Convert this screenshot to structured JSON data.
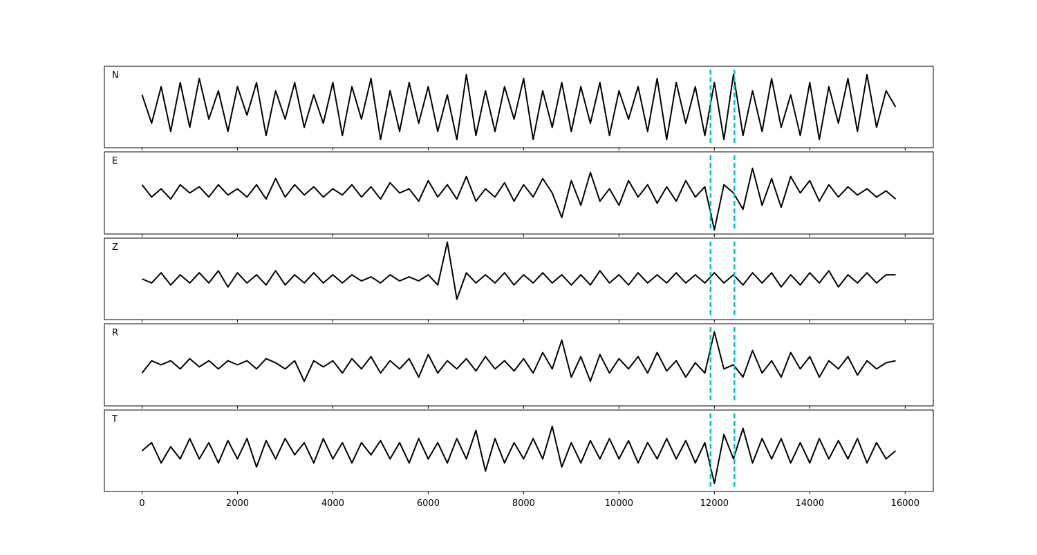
{
  "chart_data": {
    "type": "line",
    "x": [
      0,
      200,
      400,
      600,
      800,
      1000,
      1200,
      1400,
      1600,
      1800,
      2000,
      2200,
      2400,
      2600,
      2800,
      3000,
      3200,
      3400,
      3600,
      3800,
      4000,
      4200,
      4400,
      4600,
      4800,
      5000,
      5200,
      5400,
      5600,
      5800,
      6000,
      6200,
      6400,
      6600,
      6800,
      7000,
      7200,
      7400,
      7600,
      7800,
      8000,
      8200,
      8400,
      8600,
      8800,
      9000,
      9200,
      9400,
      9600,
      9800,
      10000,
      10200,
      10400,
      10600,
      10800,
      11000,
      11200,
      11400,
      11600,
      11800,
      12000,
      12200,
      12400,
      12600,
      12800,
      13000,
      13200,
      13400,
      13600,
      13800,
      14000,
      14200,
      14400,
      14600,
      14800,
      15000,
      15200,
      15400,
      15600,
      15800
    ],
    "series": [
      {
        "name": "N",
        "color": "#000000",
        "values": [
          0.3,
          -0.4,
          0.5,
          -0.6,
          0.6,
          -0.5,
          0.7,
          -0.3,
          0.4,
          -0.6,
          0.5,
          -0.2,
          0.6,
          -0.7,
          0.4,
          -0.3,
          0.6,
          -0.5,
          0.3,
          -0.4,
          0.6,
          -0.7,
          0.5,
          -0.3,
          0.7,
          -0.8,
          0.4,
          -0.6,
          0.6,
          -0.4,
          0.5,
          -0.6,
          0.3,
          -0.8,
          0.8,
          -0.7,
          0.4,
          -0.6,
          0.5,
          -0.3,
          0.7,
          -0.8,
          0.4,
          -0.5,
          0.6,
          -0.6,
          0.5,
          -0.4,
          0.6,
          -0.7,
          0.4,
          -0.3,
          0.5,
          -0.6,
          0.7,
          -0.8,
          0.6,
          -0.4,
          0.5,
          -0.7,
          0.6,
          -0.8,
          0.8,
          -0.7,
          0.4,
          -0.6,
          0.7,
          -0.5,
          0.3,
          -0.7,
          0.6,
          -0.8,
          0.5,
          -0.4,
          0.7,
          -0.6,
          0.8,
          -0.5,
          0.4,
          0.0
        ]
      },
      {
        "name": "E",
        "color": "#000000",
        "values": [
          0.2,
          -0.1,
          0.1,
          -0.15,
          0.2,
          0.0,
          0.15,
          -0.1,
          0.2,
          -0.05,
          0.1,
          -0.1,
          0.2,
          -0.15,
          0.35,
          -0.1,
          0.2,
          -0.05,
          0.15,
          -0.1,
          0.1,
          -0.05,
          0.2,
          -0.1,
          0.15,
          -0.15,
          0.25,
          0.0,
          0.1,
          -0.2,
          0.3,
          -0.1,
          0.2,
          -0.15,
          0.4,
          -0.2,
          0.1,
          -0.1,
          0.25,
          -0.2,
          0.2,
          -0.1,
          0.35,
          0.0,
          -0.6,
          0.3,
          -0.3,
          0.5,
          -0.2,
          0.1,
          -0.3,
          0.3,
          -0.1,
          0.2,
          -0.25,
          0.15,
          -0.2,
          0.3,
          -0.1,
          0.15,
          -0.9,
          0.2,
          0.0,
          -0.4,
          0.6,
          -0.3,
          0.35,
          -0.35,
          0.4,
          0.0,
          0.3,
          -0.2,
          0.2,
          -0.1,
          0.15,
          -0.05,
          0.1,
          -0.1,
          0.05,
          -0.15
        ]
      },
      {
        "name": "Z",
        "color": "#000000",
        "values": [
          0.0,
          -0.1,
          0.15,
          -0.15,
          0.1,
          -0.1,
          0.15,
          -0.1,
          0.2,
          -0.2,
          0.15,
          -0.1,
          0.1,
          -0.15,
          0.2,
          -0.15,
          0.1,
          -0.1,
          0.15,
          -0.1,
          0.1,
          -0.1,
          0.1,
          -0.05,
          0.05,
          -0.1,
          0.1,
          -0.05,
          0.05,
          -0.05,
          0.1,
          -0.15,
          0.9,
          -0.5,
          0.15,
          -0.1,
          0.1,
          -0.1,
          0.15,
          -0.15,
          0.1,
          -0.1,
          0.15,
          -0.1,
          0.1,
          -0.15,
          0.1,
          -0.15,
          0.2,
          -0.1,
          0.1,
          -0.15,
          0.15,
          -0.1,
          0.1,
          -0.1,
          0.15,
          -0.1,
          0.1,
          -0.1,
          0.15,
          -0.1,
          0.1,
          -0.15,
          0.15,
          -0.1,
          0.15,
          -0.2,
          0.1,
          -0.15,
          0.15,
          -0.1,
          0.2,
          -0.2,
          0.1,
          -0.1,
          0.15,
          -0.1,
          0.1,
          0.1
        ]
      },
      {
        "name": "R",
        "color": "#000000",
        "values": [
          -0.2,
          0.1,
          0.0,
          0.1,
          -0.1,
          0.15,
          -0.05,
          0.1,
          -0.1,
          0.1,
          0.0,
          0.1,
          -0.1,
          0.15,
          0.05,
          -0.1,
          0.1,
          -0.4,
          0.1,
          -0.05,
          0.1,
          -0.2,
          0.15,
          -0.1,
          0.2,
          -0.2,
          0.1,
          -0.1,
          0.15,
          -0.3,
          0.25,
          -0.2,
          0.1,
          -0.1,
          0.15,
          -0.15,
          0.2,
          -0.1,
          0.1,
          -0.15,
          0.15,
          -0.2,
          0.3,
          -0.1,
          0.6,
          -0.3,
          0.2,
          -0.4,
          0.25,
          -0.2,
          0.15,
          -0.1,
          0.2,
          -0.2,
          0.3,
          -0.15,
          0.1,
          -0.3,
          0.05,
          -0.2,
          0.8,
          -0.1,
          0.0,
          -0.3,
          0.35,
          -0.2,
          0.1,
          -0.3,
          0.3,
          -0.1,
          0.2,
          -0.3,
          0.1,
          -0.1,
          0.2,
          -0.25,
          0.1,
          -0.1,
          0.05,
          0.1
        ]
      },
      {
        "name": "T",
        "color": "#000000",
        "values": [
          0.0,
          0.2,
          -0.3,
          0.1,
          -0.2,
          0.3,
          -0.2,
          0.2,
          -0.3,
          0.25,
          -0.2,
          0.3,
          -0.4,
          0.25,
          -0.2,
          0.3,
          -0.1,
          0.2,
          -0.3,
          0.3,
          -0.2,
          0.2,
          -0.3,
          0.2,
          -0.1,
          0.25,
          -0.2,
          0.2,
          -0.3,
          0.3,
          -0.2,
          0.2,
          -0.3,
          0.3,
          -0.2,
          0.5,
          -0.5,
          0.3,
          -0.3,
          0.2,
          -0.2,
          0.3,
          -0.2,
          0.6,
          -0.4,
          0.2,
          -0.3,
          0.25,
          -0.2,
          0.3,
          -0.2,
          0.25,
          -0.3,
          0.2,
          -0.2,
          0.3,
          -0.2,
          0.25,
          -0.3,
          0.2,
          -0.8,
          0.4,
          -0.2,
          0.55,
          -0.3,
          0.3,
          -0.2,
          0.3,
          -0.3,
          0.2,
          -0.3,
          0.3,
          -0.2,
          0.25,
          -0.2,
          0.3,
          -0.3,
          0.2,
          -0.2,
          0.0
        ]
      }
    ],
    "xlim": [
      -790,
      16590
    ],
    "xticks": [
      0,
      2000,
      4000,
      6000,
      8000,
      10000,
      12000,
      14000,
      16000
    ],
    "ylim": [
      -1,
      1
    ],
    "vlines": [
      11920,
      12420
    ],
    "vline_color": "#00bfbf",
    "vline_dashed": true
  }
}
